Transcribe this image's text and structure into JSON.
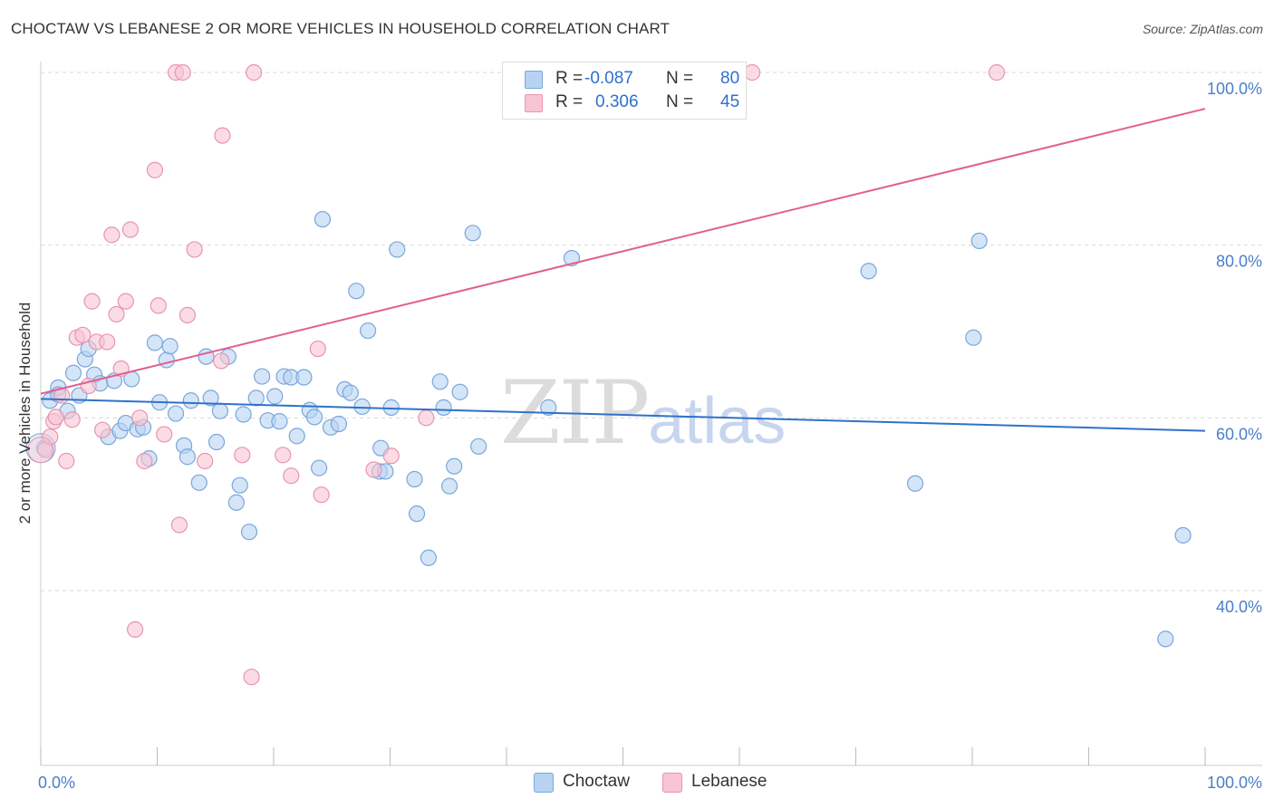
{
  "title": "CHOCTAW VS LEBANESE 2 OR MORE VEHICLES IN HOUSEHOLD CORRELATION CHART",
  "source": "Source: ZipAtlas.com",
  "watermark": {
    "zip": "ZIP",
    "atlas": "atlas"
  },
  "legend": {
    "rows": [
      {
        "r_label": "R =",
        "r_value": "-0.087",
        "n_label": "N =",
        "n_value": "80"
      },
      {
        "r_label": "R =",
        "r_value": "0.306",
        "n_label": "N =",
        "n_value": "45"
      }
    ]
  },
  "bottom_legend": [
    "Choctaw",
    "Lebanese"
  ],
  "colors": {
    "choctaw_fill": "#b8d3f2",
    "choctaw_stroke": "#7aa6dc",
    "choctaw_line": "#2f72c8",
    "lebanese_fill": "#f8c4d4",
    "lebanese_stroke": "#e894b0",
    "lebanese_line": "#e06090",
    "tick_text": "#4a7fc8",
    "grid": "#d9d9d9"
  },
  "chart_data": {
    "type": "scatter",
    "title": "CHOCTAW VS LEBANESE 2 OR MORE VEHICLES IN HOUSEHOLD CORRELATION CHART",
    "xlabel": "",
    "ylabel": "2 or more Vehicles in Household",
    "xlim": [
      0,
      100
    ],
    "ylim": [
      20,
      102
    ],
    "x_tick_labels": [
      "0.0%",
      "100.0%"
    ],
    "y_ticks": [
      40,
      60,
      80,
      100
    ],
    "y_tick_labels": [
      "40.0%",
      "60.0%",
      "80.0%",
      "100.0%"
    ],
    "series": [
      {
        "name": "Choctaw",
        "r": -0.087,
        "n": 80,
        "trend": {
          "x": [
            0,
            100
          ],
          "y": [
            62.2,
            58.5
          ]
        },
        "points": [
          [
            0.3,
            56.5
          ],
          [
            0.8,
            62.0
          ],
          [
            1.5,
            63.5
          ],
          [
            1.5,
            62.7
          ],
          [
            2.3,
            60.8
          ],
          [
            2.8,
            65.2
          ],
          [
            3.3,
            62.6
          ],
          [
            3.8,
            66.8
          ],
          [
            4.1,
            68.0
          ],
          [
            4.6,
            65.0
          ],
          [
            5.1,
            64.0
          ],
          [
            5.8,
            57.8
          ],
          [
            6.3,
            64.3
          ],
          [
            6.8,
            58.5
          ],
          [
            7.3,
            59.4
          ],
          [
            7.8,
            64.5
          ],
          [
            8.3,
            58.7
          ],
          [
            8.8,
            58.9
          ],
          [
            9.3,
            55.3
          ],
          [
            9.8,
            68.7
          ],
          [
            10.2,
            61.8
          ],
          [
            10.8,
            66.7
          ],
          [
            11.1,
            68.3
          ],
          [
            11.6,
            60.5
          ],
          [
            12.3,
            56.8
          ],
          [
            12.6,
            55.5
          ],
          [
            12.9,
            62.0
          ],
          [
            13.6,
            52.5
          ],
          [
            14.2,
            67.1
          ],
          [
            14.6,
            62.3
          ],
          [
            15.1,
            57.2
          ],
          [
            15.4,
            60.8
          ],
          [
            16.1,
            67.1
          ],
          [
            16.8,
            50.2
          ],
          [
            17.1,
            52.2
          ],
          [
            17.4,
            60.4
          ],
          [
            17.9,
            46.8
          ],
          [
            18.5,
            62.3
          ],
          [
            19.0,
            64.8
          ],
          [
            19.5,
            59.7
          ],
          [
            20.1,
            62.5
          ],
          [
            20.5,
            59.6
          ],
          [
            20.9,
            64.8
          ],
          [
            21.5,
            64.7
          ],
          [
            22.0,
            57.9
          ],
          [
            22.6,
            64.7
          ],
          [
            23.1,
            60.9
          ],
          [
            23.5,
            60.1
          ],
          [
            23.9,
            54.2
          ],
          [
            24.2,
            83.0
          ],
          [
            24.9,
            58.9
          ],
          [
            25.6,
            59.3
          ],
          [
            26.1,
            63.3
          ],
          [
            26.6,
            62.9
          ],
          [
            27.1,
            74.7
          ],
          [
            27.6,
            61.3
          ],
          [
            28.1,
            70.1
          ],
          [
            29.1,
            53.8
          ],
          [
            29.2,
            56.5
          ],
          [
            29.6,
            53.8
          ],
          [
            30.1,
            61.2
          ],
          [
            30.6,
            79.5
          ],
          [
            32.1,
            52.9
          ],
          [
            32.3,
            48.9
          ],
          [
            33.3,
            43.8
          ],
          [
            34.3,
            64.2
          ],
          [
            34.6,
            61.2
          ],
          [
            35.1,
            52.1
          ],
          [
            35.5,
            54.4
          ],
          [
            36.0,
            63.0
          ],
          [
            37.1,
            81.4
          ],
          [
            37.6,
            56.7
          ],
          [
            43.6,
            61.2
          ],
          [
            45.6,
            78.5
          ],
          [
            71.1,
            77.0
          ],
          [
            75.1,
            52.4
          ],
          [
            80.1,
            69.3
          ],
          [
            80.6,
            80.5
          ],
          [
            96.6,
            34.4
          ],
          [
            98.1,
            46.4
          ]
        ]
      },
      {
        "name": "Lebanese",
        "r": 0.306,
        "n": 45,
        "trend": {
          "x": [
            0,
            100
          ],
          "y": [
            62.8,
            95.8
          ]
        },
        "points": [
          [
            0.4,
            56.3
          ],
          [
            0.8,
            57.8
          ],
          [
            1.1,
            59.6
          ],
          [
            1.3,
            60.1
          ],
          [
            1.8,
            62.6
          ],
          [
            2.2,
            55.0
          ],
          [
            2.7,
            59.8
          ],
          [
            3.1,
            69.3
          ],
          [
            3.6,
            69.6
          ],
          [
            4.1,
            63.7
          ],
          [
            4.4,
            73.5
          ],
          [
            4.8,
            68.8
          ],
          [
            5.3,
            58.6
          ],
          [
            5.7,
            68.8
          ],
          [
            6.1,
            81.2
          ],
          [
            6.5,
            72.0
          ],
          [
            6.9,
            65.7
          ],
          [
            7.3,
            73.5
          ],
          [
            7.7,
            81.8
          ],
          [
            8.1,
            35.5
          ],
          [
            8.5,
            60.0
          ],
          [
            8.9,
            55.0
          ],
          [
            9.8,
            88.7
          ],
          [
            10.1,
            73.0
          ],
          [
            10.6,
            58.1
          ],
          [
            11.6,
            100.0
          ],
          [
            11.9,
            47.6
          ],
          [
            12.2,
            100.0
          ],
          [
            12.6,
            71.9
          ],
          [
            13.2,
            79.5
          ],
          [
            14.1,
            55.0
          ],
          [
            15.5,
            66.6
          ],
          [
            17.3,
            55.7
          ],
          [
            18.1,
            30.0
          ],
          [
            18.3,
            100.0
          ],
          [
            20.8,
            55.7
          ],
          [
            21.5,
            53.3
          ],
          [
            23.8,
            68.0
          ],
          [
            24.1,
            51.1
          ],
          [
            28.6,
            54.0
          ],
          [
            30.1,
            55.6
          ],
          [
            33.1,
            60.0
          ],
          [
            61.1,
            100.0
          ],
          [
            82.1,
            100.0
          ],
          [
            15.6,
            92.7
          ]
        ]
      }
    ]
  }
}
